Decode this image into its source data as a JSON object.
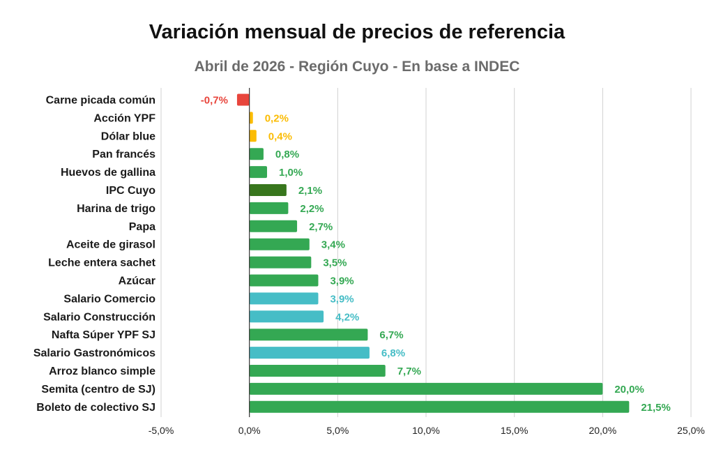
{
  "chart_data": {
    "type": "bar",
    "orientation": "horizontal",
    "title": "Variación mensual de precios de referencia",
    "subtitle": "Abril de 2026 - Región Cuyo - En base a INDEC",
    "xlim": [
      -5,
      25
    ],
    "xticks": [
      -5,
      0,
      5,
      10,
      15,
      20,
      25
    ],
    "tick_labels": [
      "-5,0%",
      "0,0%",
      "5,0%",
      "10,0%",
      "15,0%",
      "20,0%",
      "25,0%"
    ],
    "grid": "vertical",
    "bars": [
      {
        "category": "Carne picada común",
        "value": -0.7,
        "label": "-0,7%",
        "color": "#e8453c"
      },
      {
        "category": "Acción YPF",
        "value": 0.2,
        "label": "0,2%",
        "color": "#fbbc04"
      },
      {
        "category": "Dólar blue",
        "value": 0.4,
        "label": "0,4%",
        "color": "#fbbc04"
      },
      {
        "category": "Pan francés",
        "value": 0.8,
        "label": "0,8%",
        "color": "#34a853"
      },
      {
        "category": "Huevos de gallina",
        "value": 1.0,
        "label": "1,0%",
        "color": "#34a853"
      },
      {
        "category": "IPC Cuyo",
        "value": 2.1,
        "label": "2,1%",
        "color": "#38761d",
        "label_color": "#34a853"
      },
      {
        "category": "Harina de trigo",
        "value": 2.2,
        "label": "2,2%",
        "color": "#34a853"
      },
      {
        "category": "Papa",
        "value": 2.7,
        "label": "2,7%",
        "color": "#34a853"
      },
      {
        "category": "Aceite de girasol",
        "value": 3.4,
        "label": "3,4%",
        "color": "#34a853"
      },
      {
        "category": "Leche entera sachet",
        "value": 3.5,
        "label": "3,5%",
        "color": "#34a853"
      },
      {
        "category": "Azúcar",
        "value": 3.9,
        "label": "3,9%",
        "color": "#34a853"
      },
      {
        "category": "Salario Comercio",
        "value": 3.9,
        "label": "3,9%",
        "color": "#46bdc6"
      },
      {
        "category": "Salario Construcción",
        "value": 4.2,
        "label": "4,2%",
        "color": "#46bdc6"
      },
      {
        "category": "Nafta Súper YPF SJ",
        "value": 6.7,
        "label": "6,7%",
        "color": "#34a853"
      },
      {
        "category": "Salario Gastronómicos",
        "value": 6.8,
        "label": "6,8%",
        "color": "#46bdc6"
      },
      {
        "category": "Arroz blanco simple",
        "value": 7.7,
        "label": "7,7%",
        "color": "#34a853"
      },
      {
        "category": "Semita (centro de SJ)",
        "value": 20.0,
        "label": "20,0%",
        "color": "#34a853"
      },
      {
        "category": "Boleto de colectivo SJ",
        "value": 21.5,
        "label": "21,5%",
        "color": "#34a853"
      }
    ]
  }
}
